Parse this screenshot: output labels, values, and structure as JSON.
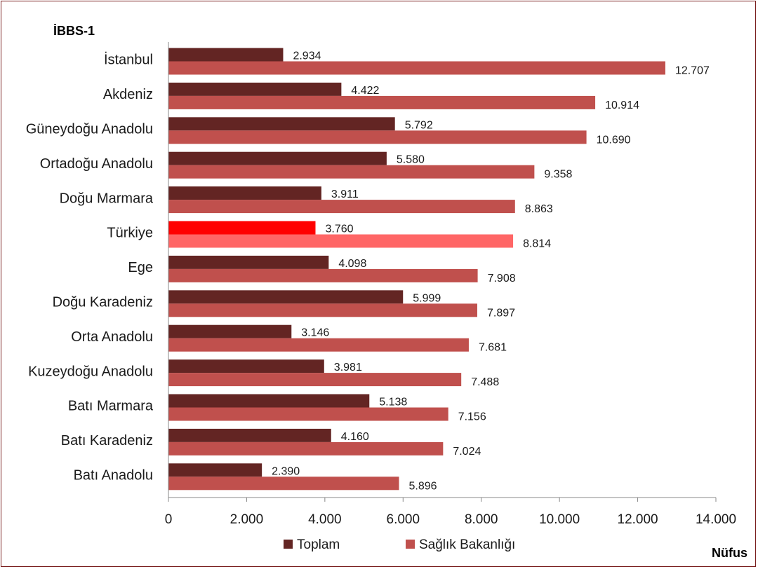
{
  "chart_data": {
    "type": "bar",
    "orientation": "horizontal",
    "title": "İBBS-1",
    "xlabel": "Nüfus",
    "ylabel": "",
    "xlim": [
      0,
      14000
    ],
    "xticks": [
      "0",
      "2.000",
      "4.000",
      "6.000",
      "8.000",
      "10.000",
      "12.000",
      "14.000"
    ],
    "xtick_values": [
      0,
      2000,
      4000,
      6000,
      8000,
      10000,
      12000,
      14000
    ],
    "grid": false,
    "legend_position": "bottom",
    "categories": [
      "İstanbul",
      "Akdeniz",
      "Güneydoğu Anadolu",
      "Ortadoğu Anadolu",
      "Doğu Marmara",
      "Türkiye",
      "Ege",
      "Doğu Karadeniz",
      "Orta Anadolu",
      "Kuzeydoğu Anadolu",
      "Batı Marmara",
      "Batı Karadeniz",
      "Batı Anadolu"
    ],
    "highlight_category": "Türkiye",
    "series": [
      {
        "name": "Toplam",
        "color": "#632523",
        "highlight_color": "#ff0000",
        "values": [
          2934,
          4422,
          5792,
          5580,
          3911,
          3760,
          4098,
          5999,
          3146,
          3981,
          5138,
          4160,
          2390
        ],
        "labels": [
          "2.934",
          "4.422",
          "5.792",
          "5.580",
          "3.911",
          "3.760",
          "4.098",
          "5.999",
          "3.146",
          "3.981",
          "5.138",
          "4.160",
          "2.390"
        ]
      },
      {
        "name": "Sağlık Bakanlığı",
        "color": "#c0504d",
        "highlight_color": "#ff6666",
        "values": [
          12707,
          10914,
          10690,
          9358,
          8863,
          8814,
          7908,
          7897,
          7681,
          7488,
          7156,
          7024,
          5896
        ],
        "labels": [
          "12.707",
          "10.914",
          "10.690",
          "9.358",
          "8.863",
          "8.814",
          "7.908",
          "7.897",
          "7.681",
          "7.488",
          "7.156",
          "7.024",
          "5.896"
        ]
      }
    ]
  }
}
